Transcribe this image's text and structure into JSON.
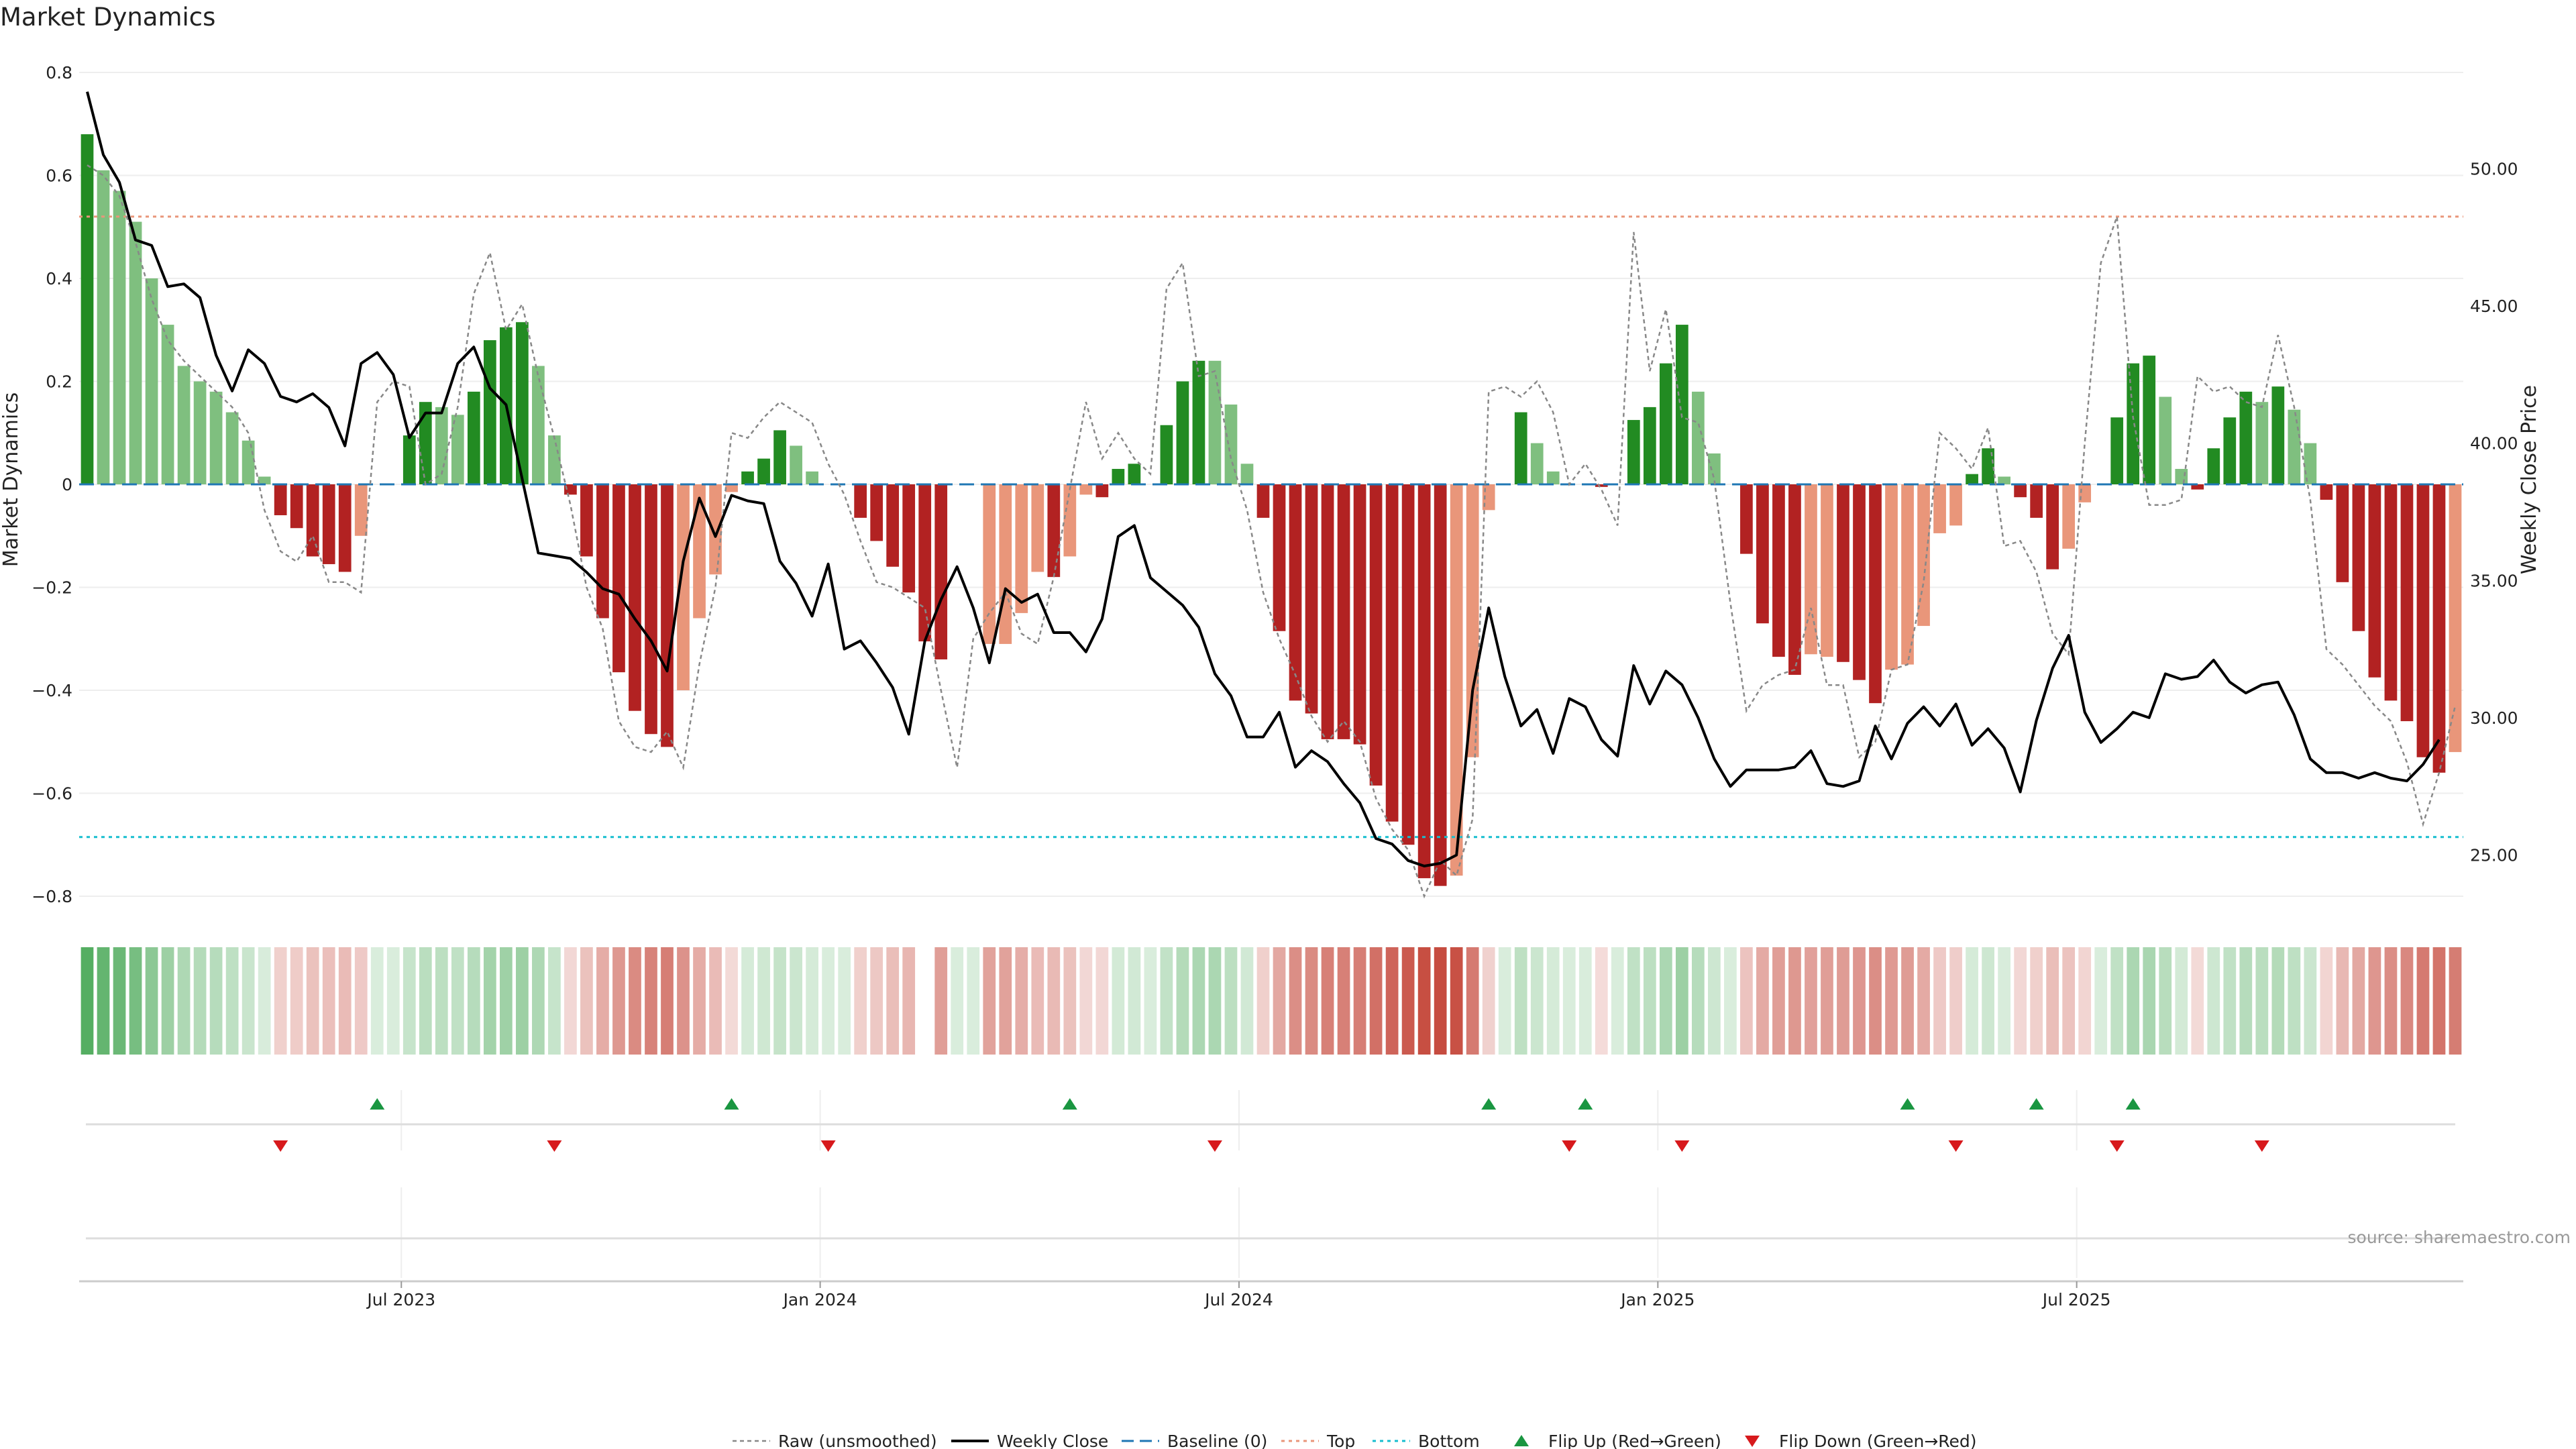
{
  "title": "Market Dynamics",
  "source": "source: sharemaestro.com",
  "colors": {
    "strong_up": "#228b22",
    "weak_up": "#7fbf7f",
    "strong_down": "#b22222",
    "weak_down": "#e9967a",
    "baseline": "#1f77b4",
    "top": "#e9967a",
    "bottom": "#17becf",
    "flip_up": "#1a9641",
    "flip_down": "#d7191c",
    "close": "#000000",
    "raw": "#888888"
  },
  "chart_data": {
    "type": "bar",
    "title": "Market Dynamics",
    "ylabel": "Market Dynamics",
    "y2label": "Weekly Close Price",
    "ylim": [
      -0.8,
      0.8
    ],
    "y2lim": [
      23.5,
      53.5
    ],
    "yticks": [
      "0.8",
      "0.6",
      "0.4",
      "0.2",
      "0",
      "−0.2",
      "−0.4",
      "−0.6",
      "−0.8"
    ],
    "y2ticks": [
      "50.00",
      "45.00",
      "40.00",
      "35.00",
      "30.00",
      "25.00"
    ],
    "xticks": [
      "Jul 2023",
      "Jan 2024",
      "Jul 2024",
      "Jan 2025",
      "Jul 2025"
    ],
    "xtick_weeks": [
      20,
      46,
      72,
      98,
      124
    ],
    "top_level": 0.52,
    "bottom_level": -0.685,
    "grid": true,
    "legend_position": "bottom",
    "legend": [
      "Raw (unsmoothed)",
      "Weekly Close",
      "Baseline (0)",
      "Top",
      "Bottom",
      "Flip Up (Red→Green)",
      "Flip Down (Green→Red)"
    ],
    "bars": [
      0.68,
      0.61,
      0.57,
      0.51,
      0.4,
      0.31,
      0.23,
      0.2,
      0.18,
      0.14,
      0.085,
      0.015,
      -0.06,
      -0.085,
      -0.14,
      -0.155,
      -0.17,
      -0.1,
      0,
      0,
      0.095,
      0.16,
      0.15,
      0.135,
      0.18,
      0.28,
      0.305,
      0.315,
      0.23,
      0.095,
      -0.02,
      -0.14,
      -0.26,
      -0.365,
      -0.44,
      -0.485,
      -0.51,
      -0.4,
      -0.26,
      -0.175,
      -0.015,
      0.025,
      0.05,
      0.105,
      0.075,
      0.025,
      0,
      0,
      -0.065,
      -0.11,
      -0.16,
      -0.21,
      -0.305,
      -0.34,
      0,
      0,
      -0.31,
      -0.31,
      -0.25,
      -0.17,
      -0.18,
      -0.14,
      -0.02,
      -0.025,
      0.03,
      0.04,
      0,
      0.115,
      0.2,
      0.24,
      0.24,
      0.155,
      0.04,
      -0.065,
      -0.285,
      -0.42,
      -0.445,
      -0.495,
      -0.495,
      -0.505,
      -0.585,
      -0.655,
      -0.7,
      -0.765,
      -0.78,
      -0.76,
      -0.53,
      -0.05,
      0,
      0.14,
      0.08,
      0.025,
      0,
      0,
      -0.005,
      0,
      0.125,
      0.15,
      0.235,
      0.31,
      0.18,
      0.06,
      0,
      -0.135,
      -0.27,
      -0.335,
      -0.37,
      -0.33,
      -0.335,
      -0.345,
      -0.38,
      -0.425,
      -0.36,
      -0.35,
      -0.275,
      -0.095,
      -0.08,
      0.02,
      0.07,
      0.015,
      -0.025,
      -0.065,
      -0.165,
      -0.125,
      -0.035,
      0,
      0.13,
      0.235,
      0.25,
      0.17,
      0.03,
      -0.01,
      0.07,
      0.13,
      0.18,
      0.16,
      0.19,
      0.145,
      0.08,
      -0.03,
      -0.19,
      -0.285,
      -0.375,
      -0.42,
      -0.46,
      -0.53,
      -0.56,
      -0.52
    ],
    "strength": [
      1,
      0,
      0,
      0,
      0,
      0,
      0,
      0,
      0,
      0,
      0,
      0,
      1,
      1,
      1,
      1,
      1,
      0,
      0,
      0,
      1,
      1,
      0,
      0,
      1,
      1,
      1,
      1,
      0,
      0,
      1,
      1,
      1,
      1,
      1,
      1,
      1,
      0,
      0,
      0,
      0,
      1,
      1,
      1,
      0,
      0,
      0,
      0,
      1,
      1,
      1,
      1,
      1,
      1,
      0,
      0,
      0,
      0,
      0,
      0,
      1,
      0,
      0,
      1,
      1,
      1,
      0,
      1,
      1,
      1,
      0,
      0,
      0,
      1,
      1,
      1,
      1,
      1,
      1,
      1,
      1,
      1,
      1,
      1,
      1,
      0,
      0,
      0,
      0,
      1,
      0,
      0,
      0,
      0,
      1,
      0,
      1,
      1,
      1,
      1,
      0,
      0,
      0,
      1,
      1,
      1,
      1,
      0,
      0,
      1,
      1,
      1,
      0,
      0,
      0,
      0,
      0,
      1,
      1,
      0,
      1,
      1,
      1,
      0,
      0,
      0,
      1,
      1,
      1,
      0,
      0,
      1,
      1,
      1,
      1,
      0,
      1,
      0,
      0,
      1,
      1,
      1,
      1,
      1,
      1,
      1,
      1,
      0
    ],
    "raw": [
      0.62,
      0.6,
      0.56,
      0.47,
      0.36,
      0.28,
      0.24,
      0.21,
      0.18,
      0.15,
      0.1,
      -0.05,
      -0.13,
      -0.15,
      -0.1,
      -0.19,
      -0.19,
      -0.21,
      0.16,
      0.2,
      0.19,
      0.0,
      0.02,
      0.15,
      0.37,
      0.45,
      0.3,
      0.35,
      0.21,
      0.09,
      -0.04,
      -0.2,
      -0.28,
      -0.46,
      -0.51,
      -0.52,
      -0.48,
      -0.55,
      -0.35,
      -0.2,
      0.1,
      0.09,
      0.13,
      0.16,
      0.14,
      0.12,
      0.04,
      -0.02,
      -0.11,
      -0.19,
      -0.2,
      -0.22,
      -0.24,
      -0.4,
      -0.55,
      -0.3,
      -0.25,
      -0.21,
      -0.29,
      -0.31,
      -0.18,
      -0.01,
      0.16,
      0.05,
      0.1,
      0.05,
      0.02,
      0.38,
      0.43,
      0.21,
      0.22,
      0.05,
      -0.05,
      -0.21,
      -0.3,
      -0.37,
      -0.45,
      -0.5,
      -0.46,
      -0.5,
      -0.61,
      -0.67,
      -0.71,
      -0.8,
      -0.73,
      -0.76,
      -0.65,
      0.18,
      0.19,
      0.17,
      0.2,
      0.14,
      0.0,
      0.04,
      -0.01,
      -0.08,
      0.49,
      0.22,
      0.34,
      0.13,
      0.12,
      0.01,
      -0.23,
      -0.44,
      -0.39,
      -0.37,
      -0.36,
      -0.24,
      -0.39,
      -0.39,
      -0.53,
      -0.5,
      -0.36,
      -0.35,
      -0.19,
      0.1,
      0.07,
      0.03,
      0.11,
      -0.12,
      -0.11,
      -0.17,
      -0.29,
      -0.33,
      0.08,
      0.43,
      0.52,
      0.13,
      -0.04,
      -0.04,
      -0.03,
      0.21,
      0.18,
      0.19,
      0.16,
      0.15,
      0.29,
      0.15,
      -0.03,
      -0.32,
      -0.35,
      -0.39,
      -0.43,
      -0.46,
      -0.54,
      -0.66,
      -0.56,
      -0.43
    ],
    "close": [
      52.8,
      50.5,
      49.5,
      47.4,
      47.2,
      45.7,
      45.8,
      45.3,
      43.2,
      41.9,
      43.4,
      42.9,
      41.7,
      41.5,
      41.8,
      41.3,
      39.9,
      42.9,
      43.3,
      42.5,
      40.2,
      41.1,
      41.1,
      42.9,
      43.5,
      42.0,
      41.4,
      38.7,
      36.0,
      35.9,
      35.8,
      35.3,
      34.7,
      34.5,
      33.6,
      32.8,
      31.7,
      35.7,
      38.0,
      36.6,
      38.1,
      37.9,
      37.8,
      35.7,
      34.9,
      33.7,
      35.6,
      32.5,
      32.8,
      32.0,
      31.1,
      29.4,
      32.8,
      34.3,
      35.5,
      34.0,
      32.0,
      34.7,
      34.2,
      34.5,
      33.1,
      33.1,
      32.4,
      33.6,
      36.6,
      37.0,
      35.1,
      34.6,
      34.1,
      33.3,
      31.6,
      30.8,
      29.3,
      29.3,
      30.2,
      28.2,
      28.8,
      28.4,
      27.6,
      26.9,
      25.6,
      25.4,
      24.8,
      24.6,
      24.7,
      25.0,
      31.0,
      34.0,
      31.5,
      29.7,
      30.3,
      28.7,
      30.7,
      30.4,
      29.2,
      28.6,
      31.9,
      30.5,
      31.7,
      31.2,
      30.0,
      28.5,
      27.5,
      28.1,
      28.1,
      28.1,
      28.2,
      28.8,
      27.6,
      27.5,
      27.7,
      29.7,
      28.5,
      29.8,
      30.4,
      29.7,
      30.5,
      29.0,
      29.6,
      28.9,
      27.3,
      29.9,
      31.8,
      33.0,
      30.2,
      29.1,
      29.6,
      30.2,
      30.0,
      31.6,
      31.4,
      31.5,
      32.1,
      31.3,
      30.9,
      31.2,
      31.3,
      30.1,
      28.5,
      28.0,
      28.0,
      27.8,
      28.0,
      27.8,
      27.7,
      28.3,
      29.2
    ],
    "flip_up_weeks": [
      18,
      40,
      61,
      87,
      93,
      113,
      121,
      127
    ],
    "flip_down_weeks": [
      12,
      29,
      46,
      70,
      92,
      99,
      116,
      126,
      135
    ],
    "strip_gap_weeks": [
      52
    ]
  }
}
